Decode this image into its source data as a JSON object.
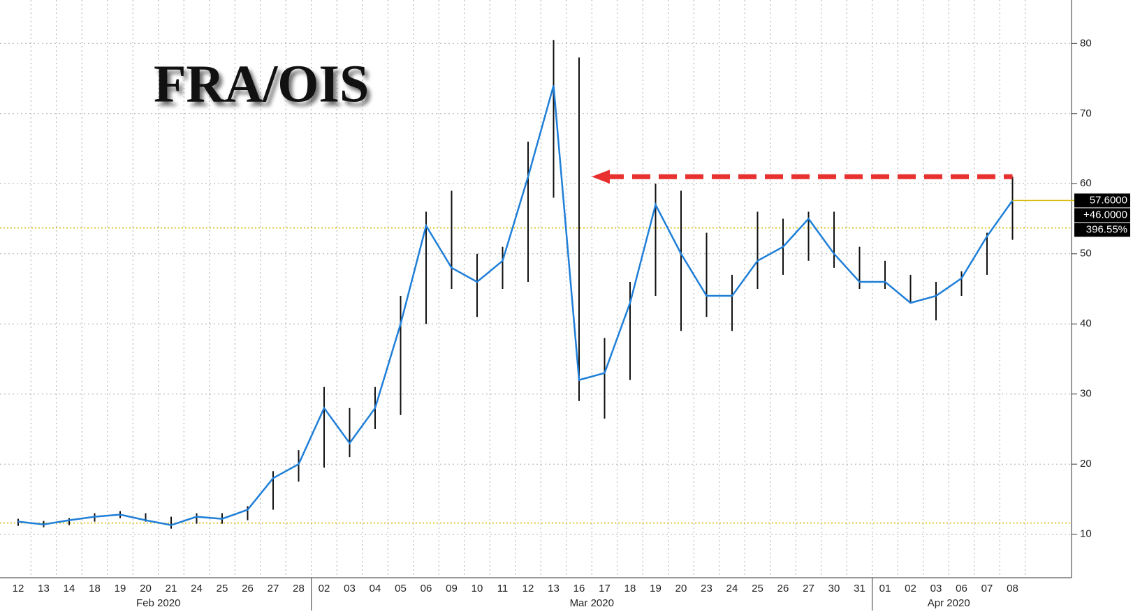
{
  "chart_data": {
    "type": "line",
    "title": "FRA/OIS",
    "categories": [
      "12",
      "13",
      "14",
      "18",
      "19",
      "20",
      "21",
      "24",
      "25",
      "26",
      "27",
      "28",
      "02",
      "03",
      "04",
      "05",
      "06",
      "09",
      "10",
      "11",
      "12",
      "13",
      "16",
      "17",
      "18",
      "19",
      "20",
      "23",
      "24",
      "25",
      "26",
      "27",
      "30",
      "31",
      "01",
      "02",
      "03",
      "06",
      "07",
      "08"
    ],
    "months": [
      {
        "label": "Feb 2020",
        "first": 0,
        "last": 11
      },
      {
        "label": "Mar 2020",
        "first": 12,
        "last": 33
      },
      {
        "label": "Apr 2020",
        "first": 34,
        "last": 39
      }
    ],
    "values": [
      11.8,
      11.4,
      12.0,
      12.5,
      12.8,
      12.0,
      11.3,
      12.5,
      12.2,
      13.5,
      18.0,
      20.0,
      28.0,
      23.0,
      28.0,
      40.0,
      54.0,
      48.0,
      46.0,
      49.0,
      61.0,
      74.0,
      32.0,
      33.0,
      43.0,
      57.0,
      50.0,
      44.0,
      44.0,
      49.0,
      51.0,
      55.0,
      50.0,
      46.0,
      46.0,
      43.0,
      44.0,
      46.5,
      52.5,
      57.6
    ],
    "low": [
      11.2,
      11.0,
      11.3,
      11.8,
      12.3,
      11.8,
      10.8,
      11.5,
      11.5,
      12.0,
      13.5,
      17.5,
      19.5,
      21.0,
      25.0,
      27.0,
      40.0,
      45.0,
      41.0,
      45.0,
      46.0,
      58.0,
      29.0,
      26.5,
      32.0,
      44.0,
      39.0,
      41.0,
      39.0,
      45.0,
      47.0,
      49.0,
      48.0,
      45.0,
      45.0,
      43.0,
      40.5,
      44.0,
      47.0,
      52.0
    ],
    "high": [
      12.2,
      11.9,
      12.3,
      13.0,
      13.3,
      13.0,
      12.5,
      13.0,
      13.0,
      14.0,
      19.0,
      22.0,
      31.0,
      28.0,
      31.0,
      44.0,
      56.0,
      59.0,
      50.0,
      51.0,
      66.0,
      80.5,
      78.0,
      38.0,
      46.0,
      60.0,
      59.0,
      53.0,
      47.0,
      56.0,
      55.0,
      56.0,
      56.0,
      51.0,
      49.0,
      47.0,
      46.0,
      47.5,
      53.0,
      61.0
    ],
    "color": "#1f7fd8",
    "range_color": "#111111",
    "ylim": [
      3.8,
      86.2
    ],
    "yticks": [
      10,
      20,
      30,
      40,
      50,
      60,
      70,
      80
    ],
    "grid": true,
    "reference_lines": [
      11.6,
      53.7
    ],
    "arrow_y": 61,
    "last_value": 57.6,
    "last_value_label": "57.6000",
    "change": 46,
    "change_label": "+46.0000",
    "change_pct": 396.55,
    "change_pct_label": "396.55%"
  }
}
